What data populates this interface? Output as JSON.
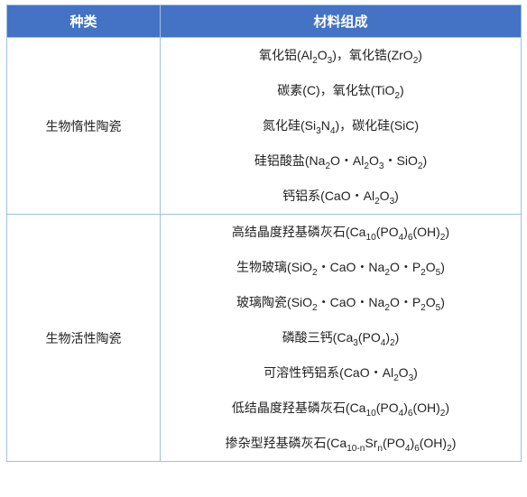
{
  "colors": {
    "header_bg": "#4472c4",
    "header_text": "#ffffff",
    "border": "#9cc2e5",
    "body_text": "#222222",
    "background": "#ffffff"
  },
  "headers": {
    "category": "种类",
    "composition": "材料组成"
  },
  "rows": [
    {
      "category": "生物惰性陶瓷",
      "materials": [
        "氧化铝(Al<sub>2</sub>O<sub>3</sub>)，氧化锆(ZrO<sub>2</sub>)",
        "碳素(C)，氧化钛(TiO<sub>2</sub>)",
        "氮化硅(Si<sub>3</sub>N<sub>4</sub>)，碳化硅(SiC)",
        "硅铝酸盐(Na<sub>2</sub>O・Al<sub>2</sub>O<sub>3</sub>・SiO<sub>2</sub>)",
        "钙铝系(CaO・Al<sub>2</sub>O<sub>3</sub>)"
      ]
    },
    {
      "category": "生物活性陶瓷",
      "materials": [
        "高结晶度羟基磷灰石(Ca<sub>10</sub>(PO<sub>4</sub>)<sub>6</sub>(OH)<sub>2</sub>)",
        "生物玻璃(SiO<sub>2</sub>・CaO・Na<sub>2</sub>O・P<sub>2</sub>O<sub>5</sub>)",
        "玻璃陶瓷(SiO<sub>2</sub>・CaO・Na<sub>2</sub>O・P<sub>2</sub>O<sub>5</sub>)",
        "磷酸三钙(Ca<sub>3</sub>(PO<sub>4</sub>)<sub>2</sub>)",
        "可溶性钙铝系(CaO・Al<sub>2</sub>O<sub>3</sub>)",
        "低结晶度羟基磷灰石(Ca<sub>10</sub>(PO<sub>4</sub>)<sub>6</sub>(OH)<sub>2</sub>)",
        "掺杂型羟基磷灰石(Ca<sub>10-n</sub>Sr<sub>n</sub>(PO<sub>4</sub>)<sub>6</sub>(OH)<sub>2</sub>)"
      ]
    }
  ]
}
